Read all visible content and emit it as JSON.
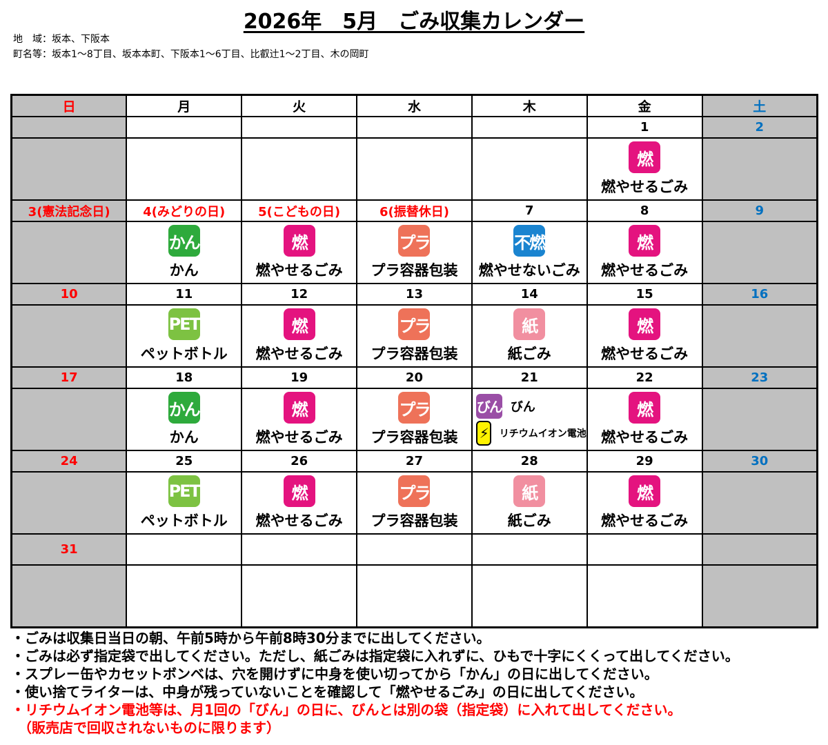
{
  "title": "2026年　5月　ごみ収集カレンダー",
  "area_line": "地　域：坂本、下阪本",
  "towns_line": "町名等：坂本1～8丁目、坂本本町、下阪本1～6丁目、比叡辻1～2丁目、木の岡町",
  "colors": {
    "sunday": "#ff0000",
    "saturday": "#0070c0",
    "holiday": "#ff0000",
    "weekend_bg": "#c0c0c0"
  },
  "weekdays": [
    {
      "label": "日",
      "color": "#ff0000"
    },
    {
      "label": "月"
    },
    {
      "label": "火"
    },
    {
      "label": "水"
    },
    {
      "label": "木"
    },
    {
      "label": "金"
    },
    {
      "label": "土",
      "color": "#0070c0"
    }
  ],
  "icons": {
    "moeru": {
      "glyph": "燃",
      "color": "#e4137f",
      "name": "burnable-icon"
    },
    "kan": {
      "glyph": "かん",
      "color": "#2eaa3c",
      "name": "can-icon"
    },
    "pura": {
      "glyph": "プラ",
      "color": "#ee7259",
      "name": "plastic-icon"
    },
    "funen": {
      "glyph": "不燃",
      "color": "#1a84d0",
      "name": "non-burnable-icon"
    },
    "pet": {
      "glyph": "PET",
      "color": "#7dc242",
      "name": "pet-bottle-icon"
    },
    "kami": {
      "glyph": "紙",
      "color": "#f18fa0",
      "name": "paper-icon"
    },
    "bin": {
      "glyph": "びん",
      "color": "#9a4ea6",
      "name": "bottle-icon"
    },
    "battery": {
      "glyph": "⚡",
      "color": "#fff200",
      "name": "battery-icon"
    }
  },
  "weeks": [
    [
      {
        "date": ""
      },
      {
        "date": ""
      },
      {
        "date": ""
      },
      {
        "date": ""
      },
      {
        "date": ""
      },
      {
        "date": "1",
        "items": [
          {
            "icon": "moeru",
            "label": "燃やせるごみ"
          }
        ]
      },
      {
        "date": "2"
      }
    ],
    [
      {
        "date": "3(憲法記念日)",
        "holiday": true
      },
      {
        "date": "4(みどりの日)",
        "holiday": true,
        "items": [
          {
            "icon": "kan",
            "label": "かん"
          }
        ]
      },
      {
        "date": "5(こどもの日)",
        "holiday": true,
        "items": [
          {
            "icon": "moeru",
            "label": "燃やせるごみ"
          }
        ]
      },
      {
        "date": "6(振替休日)",
        "holiday": true,
        "items": [
          {
            "icon": "pura",
            "label": "プラ容器包装"
          }
        ]
      },
      {
        "date": "7",
        "items": [
          {
            "icon": "funen",
            "label": "燃やせないごみ"
          }
        ]
      },
      {
        "date": "8",
        "items": [
          {
            "icon": "moeru",
            "label": "燃やせるごみ"
          }
        ]
      },
      {
        "date": "9"
      }
    ],
    [
      {
        "date": "10"
      },
      {
        "date": "11",
        "items": [
          {
            "icon": "pet",
            "label": "ペットボトル"
          }
        ]
      },
      {
        "date": "12",
        "items": [
          {
            "icon": "moeru",
            "label": "燃やせるごみ"
          }
        ]
      },
      {
        "date": "13",
        "items": [
          {
            "icon": "pura",
            "label": "プラ容器包装"
          }
        ]
      },
      {
        "date": "14",
        "items": [
          {
            "icon": "kami",
            "label": "紙ごみ"
          }
        ]
      },
      {
        "date": "15",
        "items": [
          {
            "icon": "moeru",
            "label": "燃やせるごみ"
          }
        ]
      },
      {
        "date": "16"
      }
    ],
    [
      {
        "date": "17"
      },
      {
        "date": "18",
        "items": [
          {
            "icon": "kan",
            "label": "かん"
          }
        ]
      },
      {
        "date": "19",
        "items": [
          {
            "icon": "moeru",
            "label": "燃やせるごみ"
          }
        ]
      },
      {
        "date": "20",
        "items": [
          {
            "icon": "pura",
            "label": "プラ容器包装"
          }
        ]
      },
      {
        "date": "21",
        "items": [
          {
            "icon": "bin",
            "label": "びん"
          },
          {
            "icon": "battery",
            "label": "リチウムイオン電池"
          }
        ]
      },
      {
        "date": "22",
        "items": [
          {
            "icon": "moeru",
            "label": "燃やせるごみ"
          }
        ]
      },
      {
        "date": "23"
      }
    ],
    [
      {
        "date": "24"
      },
      {
        "date": "25",
        "items": [
          {
            "icon": "pet",
            "label": "ペットボトル"
          }
        ]
      },
      {
        "date": "26",
        "items": [
          {
            "icon": "moeru",
            "label": "燃やせるごみ"
          }
        ]
      },
      {
        "date": "27",
        "items": [
          {
            "icon": "pura",
            "label": "プラ容器包装"
          }
        ]
      },
      {
        "date": "28",
        "items": [
          {
            "icon": "kami",
            "label": "紙ごみ"
          }
        ]
      },
      {
        "date": "29",
        "items": [
          {
            "icon": "moeru",
            "label": "燃やせるごみ"
          }
        ]
      },
      {
        "date": "30"
      }
    ],
    [
      {
        "date": "31"
      },
      {
        "date": ""
      },
      {
        "date": ""
      },
      {
        "date": ""
      },
      {
        "date": ""
      },
      {
        "date": ""
      },
      {
        "date": ""
      }
    ]
  ],
  "notes": [
    {
      "text": "・ごみは収集日当日の朝、午前5時から午前8時30分までに出してください。"
    },
    {
      "text": "・ごみは必ず指定袋で出してください。ただし、紙ごみは指定袋に入れずに、ひもで十字にくくって出してください。"
    },
    {
      "text": "・スプレー缶やカセットボンベは、穴を開けずに中身を使い切ってから「かん」の日に出してください。"
    },
    {
      "text": "・使い捨てライターは、中身が残っていないことを確認して「燃やせるごみ」の日に出してください。"
    },
    {
      "text": "・リチウムイオン電池等は、月1回の「びん」の日に、びんとは別の袋（指定袋）に入れて出してください。",
      "red": true
    },
    {
      "text": "　（販売店で回収されないものに限ります）",
      "red": true
    }
  ]
}
